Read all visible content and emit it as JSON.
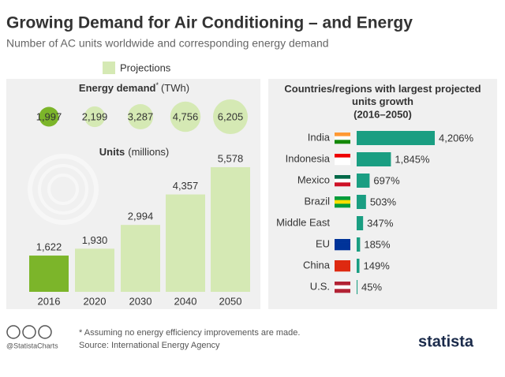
{
  "title": "Growing Demand for Air Conditioning – and Energy",
  "subtitle": "Number of AC units worldwide and corresponding energy demand",
  "legend": "Projections",
  "chart_data": [
    {
      "type": "bubble",
      "title": "Energy demand",
      "title_note": "*",
      "unit": "(TWh)",
      "values": [
        1997,
        2199,
        3287,
        4756,
        6205
      ],
      "value_labels": [
        "1,997",
        "2,199",
        "3,287",
        "4,756",
        "6,205"
      ],
      "colors": [
        "#7cb52a",
        "#d5e9b4",
        "#d5e9b4",
        "#d5e9b4",
        "#d5e9b4"
      ]
    },
    {
      "type": "bar",
      "title": "Units",
      "unit": "(millions)",
      "categories": [
        "2016",
        "2020",
        "2030",
        "2040",
        "2050"
      ],
      "values": [
        1622,
        1930,
        2994,
        4357,
        5578
      ],
      "value_labels": [
        "1,622",
        "1,930",
        "2,994",
        "4,357",
        "5,578"
      ],
      "colors": [
        "#7cb52a",
        "#d5e9b4",
        "#d5e9b4",
        "#d5e9b4",
        "#d5e9b4"
      ],
      "ylim": [
        0,
        6000
      ]
    },
    {
      "type": "hbar",
      "title": "Countries/regions with largest projected units growth",
      "subtitle": "(2016–2050)",
      "categories": [
        "India",
        "Indonesia",
        "Mexico",
        "Brazil",
        "Middle East",
        "EU",
        "China",
        "U.S."
      ],
      "values": [
        4206,
        1845,
        697,
        503,
        347,
        185,
        149,
        45
      ],
      "value_labels": [
        "4,206%",
        "1,845%",
        "697%",
        "503%",
        "347%",
        "185%",
        "149%",
        "45%"
      ],
      "color": "#1a9e82",
      "xlim": [
        0,
        4206
      ]
    }
  ],
  "footer": {
    "handle": "@StatistaCharts",
    "note": "* Assuming no energy efficiency improvements are made.",
    "source": "Source: International Energy Agency",
    "brand": "statista"
  }
}
